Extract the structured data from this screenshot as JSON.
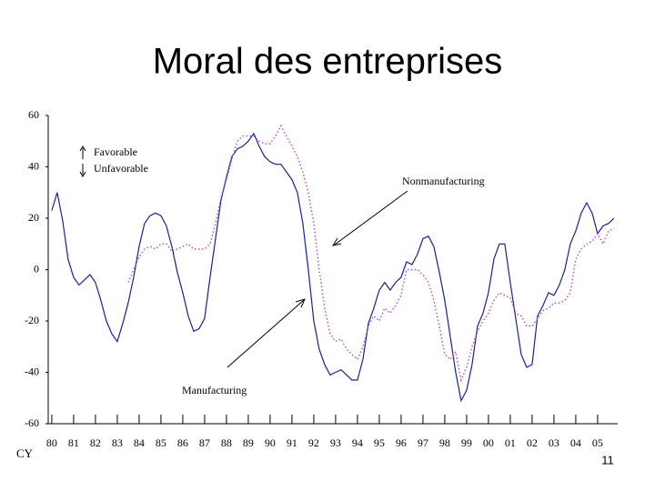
{
  "chart_data": {
    "type": "line",
    "title": "Moral des entreprises",
    "x_axis_label": "CY",
    "legend_notes": [
      "Favorable",
      "Unfavorable"
    ],
    "annotations": [
      "Nonmanufacturing",
      "Manufacturing"
    ],
    "page_number": "11",
    "x": [
      1980,
      1980.25,
      1980.5,
      1980.75,
      1981,
      1981.25,
      1981.5,
      1981.75,
      1982,
      1982.25,
      1982.5,
      1982.75,
      1983,
      1983.25,
      1983.5,
      1983.75,
      1984,
      1984.25,
      1984.5,
      1984.75,
      1985,
      1985.25,
      1985.5,
      1985.75,
      1986,
      1986.25,
      1986.5,
      1986.75,
      1987,
      1987.25,
      1987.5,
      1987.75,
      1988,
      1988.25,
      1988.5,
      1988.75,
      1989,
      1989.25,
      1989.5,
      1989.75,
      1990,
      1990.25,
      1990.5,
      1990.75,
      1991,
      1991.25,
      1991.5,
      1991.75,
      1992,
      1992.25,
      1992.5,
      1992.75,
      1993,
      1993.25,
      1993.5,
      1993.75,
      1994,
      1994.25,
      1994.5,
      1994.75,
      1995,
      1995.25,
      1995.5,
      1995.75,
      1996,
      1996.25,
      1996.5,
      1996.75,
      1997,
      1997.25,
      1997.5,
      1997.75,
      1998,
      1998.25,
      1998.5,
      1998.75,
      1999,
      1999.25,
      1999.5,
      1999.75,
      2000,
      2000.25,
      2000.5,
      2000.75,
      2001,
      2001.25,
      2001.5,
      2001.75,
      2002,
      2002.25,
      2002.5,
      2002.75,
      2003,
      2003.25,
      2003.5,
      2003.75,
      2004,
      2004.25,
      2004.5,
      2004.75,
      2005,
      2005.25,
      2005.5,
      2005.75
    ],
    "series": [
      {
        "name": "Manufacturing",
        "color": "#1f1f8f",
        "dashed": false,
        "values": [
          23,
          30,
          19,
          4,
          -3,
          -6,
          -4,
          -2,
          -5,
          -12,
          -20,
          -25,
          -28,
          -21,
          -13,
          -3,
          9,
          18,
          21,
          22,
          21,
          17,
          9,
          -1,
          -9,
          -18,
          -24,
          -23,
          -19,
          -3,
          12,
          27,
          36,
          44,
          47,
          48,
          50,
          53,
          48,
          44,
          42,
          41,
          41,
          38,
          35,
          30,
          18,
          0,
          -20,
          -31,
          -37,
          -41,
          -40,
          -39,
          -41,
          -43,
          -43,
          -35,
          -21,
          -15,
          -8,
          -5,
          -8,
          -5,
          -3,
          3,
          2,
          6,
          12,
          13,
          9,
          -1,
          -12,
          -26,
          -40,
          -51,
          -47,
          -37,
          -22,
          -17,
          -9,
          4,
          10,
          10,
          -5,
          -19,
          -33,
          -38,
          -37,
          -18,
          -14,
          -9,
          -10,
          -6,
          0,
          10,
          15,
          22,
          26,
          22,
          14,
          17,
          18,
          20
        ]
      },
      {
        "name": "Nonmanufacturing",
        "color": "#c040c0",
        "dashed": true,
        "values": [
          null,
          null,
          null,
          null,
          null,
          null,
          null,
          null,
          null,
          null,
          null,
          null,
          null,
          null,
          -5,
          0,
          5,
          8,
          9,
          8,
          10,
          10,
          7,
          8,
          9,
          10,
          8,
          8,
          8,
          10,
          18,
          28,
          35,
          43,
          50,
          52,
          52,
          52,
          50,
          49,
          49,
          52,
          56,
          52,
          48,
          44,
          38,
          30,
          18,
          0,
          -15,
          -25,
          -28,
          -27,
          -31,
          -33,
          -35,
          -30,
          -22,
          -18,
          -20,
          -15,
          -17,
          -14,
          -10,
          0,
          0,
          0,
          -2,
          -5,
          -12,
          -22,
          -33,
          -35,
          -32,
          -43,
          -38,
          -30,
          -24,
          -20,
          -17,
          -12,
          -9,
          -10,
          -11,
          -17,
          -18,
          -22,
          -22,
          -19,
          -16,
          -15,
          -13,
          -13,
          -12,
          -9,
          4,
          8,
          10,
          11,
          14,
          10,
          15,
          16
        ]
      }
    ],
    "xlim": [
      1979.92,
      2005.92
    ],
    "xticks": [
      {
        "value": 1980,
        "label": "80"
      },
      {
        "value": 1981,
        "label": "81"
      },
      {
        "value": 1982,
        "label": "82"
      },
      {
        "value": 1983,
        "label": "83"
      },
      {
        "value": 1984,
        "label": "84"
      },
      {
        "value": 1985,
        "label": "85"
      },
      {
        "value": 1986,
        "label": "86"
      },
      {
        "value": 1987,
        "label": "87"
      },
      {
        "value": 1988,
        "label": "88"
      },
      {
        "value": 1989,
        "label": "89"
      },
      {
        "value": 1990,
        "label": "90"
      },
      {
        "value": 1991,
        "label": "91"
      },
      {
        "value": 1992,
        "label": "92"
      },
      {
        "value": 1993,
        "label": "93"
      },
      {
        "value": 1994,
        "label": "94"
      },
      {
        "value": 1995,
        "label": "95"
      },
      {
        "value": 1996,
        "label": "96"
      },
      {
        "value": 1997,
        "label": "97"
      },
      {
        "value": 1998,
        "label": "98"
      },
      {
        "value": 1999,
        "label": "99"
      },
      {
        "value": 2000,
        "label": "00"
      },
      {
        "value": 2001,
        "label": "01"
      },
      {
        "value": 2002,
        "label": "02"
      },
      {
        "value": 2003,
        "label": "03"
      },
      {
        "value": 2004,
        "label": "04"
      },
      {
        "value": 2005,
        "label": "05"
      }
    ],
    "ylim": [
      -60,
      60
    ],
    "yticks": [
      -60,
      -40,
      -20,
      0,
      20,
      40,
      60
    ],
    "grid": false
  }
}
